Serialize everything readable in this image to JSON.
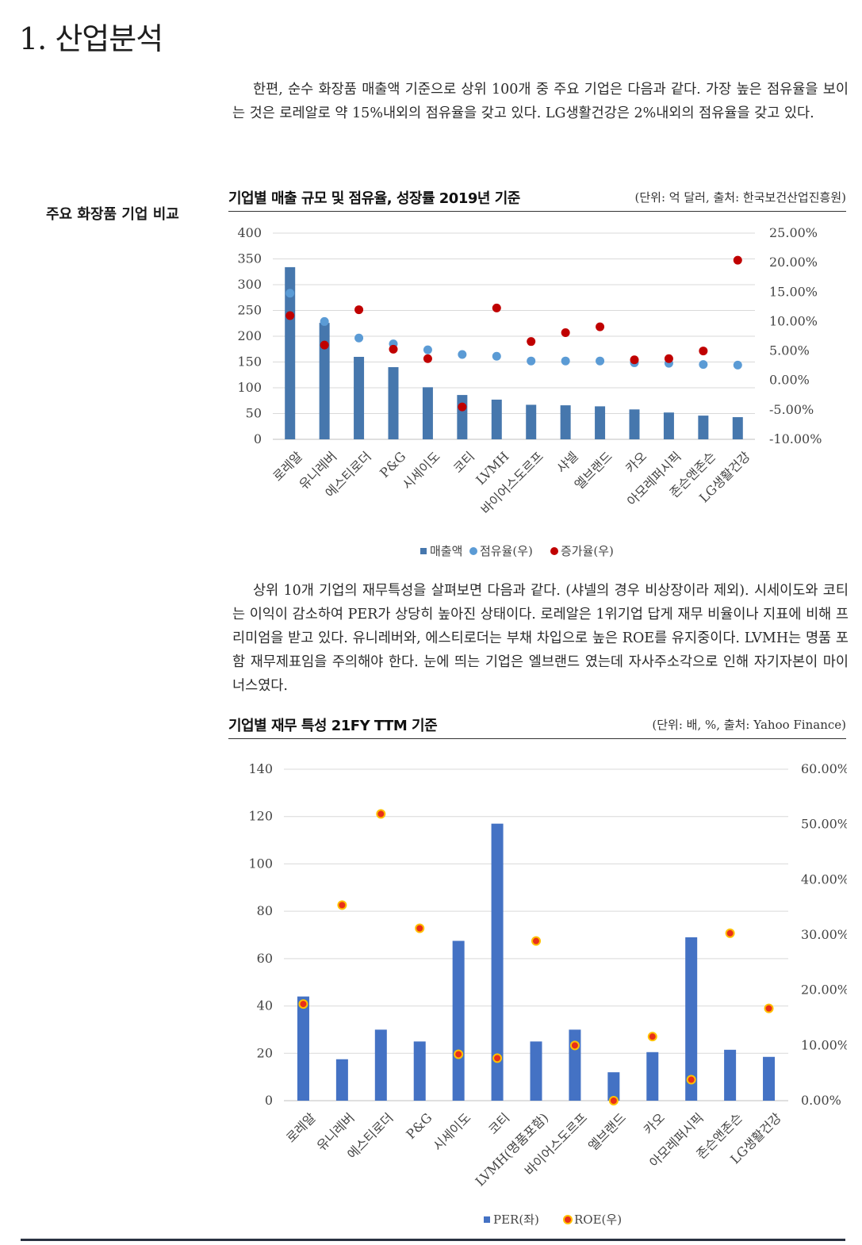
{
  "page": {
    "title": "1. 산업분석",
    "side_label": "주요 화장품 기업 비교",
    "para1": "한편, 순수 화장품 매출액 기준으로 상위 100개 중 주요 기업은 다음과 같다. 가장 높은 점유율을 보이는 것은 로레알로 약 15%내외의 점유율을 갖고 있다. LG생활건강은 2%내외의 점유율을 갖고 있다.",
    "para2": "상위 10개 기업의 재무특성을 살펴보면 다음과 같다. (샤넬의 경우 비상장이라 제외). 시세이도와 코티는 이익이 감소하여 PER가 상당히 높아진 상태이다. 로레알은 1위기업 답게 재무 비율이나 지표에 비해 프리미엄을 받고 있다. 유니레버와, 에스티로더는 부채 차입으로 높은 ROE를 유지중이다. LVMH는 명품 포함 재무제표임을 주의해야 한다. 눈에 띄는 기업은 엘브랜드 였는데 자사주소각으로 인해 자기자본이 마이너스였다."
  },
  "colors": {
    "bar1": "#4677ad",
    "dot_share": "#5b9bd5",
    "dot_growth": "#c00000",
    "bar2": "#4472c4",
    "dot_roe_fill": "#e8301a",
    "dot_roe_ring": "#ffc000"
  },
  "chart_data": [
    {
      "type": "bar",
      "title": "기업별 매출 규모 및 점유율, 성장률 2019년 기준",
      "unit_note": "(단위: 억 달러, 출처: 한국보건산업진흥원)",
      "categories": [
        "로레알",
        "유니레버",
        "에스티로더",
        "P&G",
        "시세이도",
        "코티",
        "LVMH",
        "바이어스도르프",
        "샤넬",
        "엘브랜드",
        "카오",
        "아모레퍼시픽",
        "존슨앤존슨",
        "LG생활건강"
      ],
      "ylim": [
        0,
        400
      ],
      "y_ticks": [
        "0",
        "50",
        "100",
        "150",
        "200",
        "250",
        "300",
        "350",
        "400"
      ],
      "y2lim": [
        -0.1,
        0.25
      ],
      "y2_ticks": [
        "-10.00%",
        "-5.00%",
        "0.00%",
        "5.00%",
        "10.00%",
        "15.00%",
        "20.00%",
        "25.00%"
      ],
      "series": [
        {
          "name": "매출액",
          "kind": "bar",
          "values": [
            334,
            226,
            160,
            140,
            101,
            86,
            77,
            67,
            66,
            64,
            58,
            52,
            46,
            43
          ]
        },
        {
          "name": "점유율(우)",
          "kind": "dot",
          "axis": "right",
          "values": [
            0.148,
            0.1,
            0.072,
            0.062,
            0.052,
            0.044,
            0.041,
            0.033,
            0.033,
            0.033,
            0.03,
            0.029,
            0.027,
            0.026
          ]
        },
        {
          "name": "증가율(우)",
          "kind": "dot",
          "axis": "right",
          "values": [
            0.11,
            0.06,
            0.12,
            0.053,
            0.037,
            -0.045,
            0.123,
            0.066,
            0.081,
            0.091,
            0.035,
            0.037,
            0.05,
            0.204
          ]
        }
      ],
      "legend": [
        "매출액",
        "점유율(우)",
        "증가율(우)"
      ],
      "legend_position": "bottom"
    },
    {
      "type": "bar",
      "title": "기업별 재무 특성 21FY TTM 기준",
      "unit_note": "(단위: 배, %, 출처: Yahoo Finance)",
      "categories": [
        "로레알",
        "유니레버",
        "에스티로더",
        "P&G",
        "시세이도",
        "코티",
        "LVMH(명품포함)",
        "바이어스도르프",
        "엘브랜드",
        "카오",
        "아모레퍼시픽",
        "존슨앤존슨",
        "LG생활건강"
      ],
      "ylim": [
        0,
        140
      ],
      "y_ticks": [
        "0",
        "20",
        "40",
        "60",
        "80",
        "100",
        "120",
        "140"
      ],
      "y2lim": [
        0,
        0.6
      ],
      "y2_ticks": [
        "0.00%",
        "10.00%",
        "20.00%",
        "30.00%",
        "40.00%",
        "50.00%",
        "60.00%"
      ],
      "series": [
        {
          "name": "PER(좌)",
          "kind": "bar",
          "values": [
            44,
            17.5,
            30,
            25,
            67.5,
            117,
            25,
            30,
            12,
            20.5,
            69,
            21.5,
            18.5
          ]
        },
        {
          "name": "ROE(우)",
          "kind": "dot",
          "axis": "right",
          "values": [
            0.175,
            0.354,
            0.519,
            0.312,
            0.084,
            0.077,
            0.289,
            0.1,
            0.0,
            0.116,
            0.038,
            0.303,
            0.167
          ]
        }
      ],
      "legend": [
        "PER(좌)",
        "ROE(우)"
      ],
      "legend_position": "bottom"
    }
  ]
}
